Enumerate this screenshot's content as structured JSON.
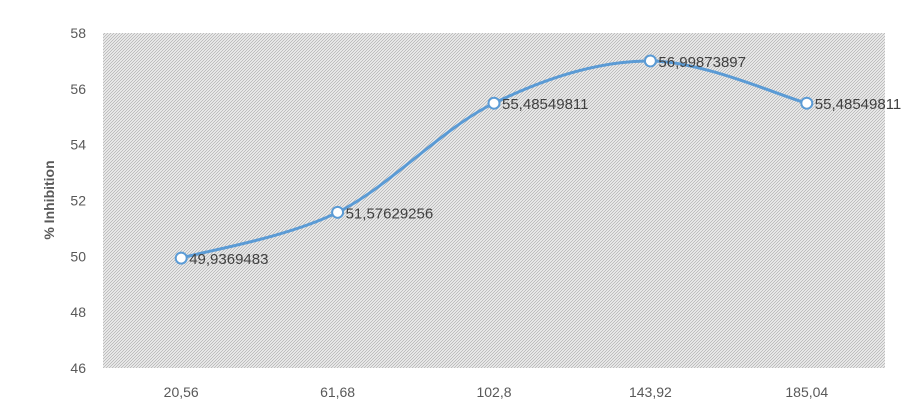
{
  "chart_data": {
    "type": "line",
    "title": "",
    "xlabel": "",
    "ylabel": "% Inhibition",
    "categories": [
      "20,56",
      "61,68",
      "102,8",
      "143,92",
      "185,04"
    ],
    "series": [
      {
        "values": [
          49.9369483,
          51.57629256,
          55.48549811,
          56.99873897,
          55.48549811
        ],
        "data_labels": [
          "49,9369483",
          "51,57629256",
          "55,48549811",
          "56,99873897",
          "55,48549811"
        ],
        "smooth": true,
        "color": "#5b9bd5"
      }
    ],
    "ylim": [
      46,
      58
    ],
    "yticks": [
      "46",
      "48",
      "50",
      "52",
      "54",
      "56",
      "58"
    ],
    "grid": false,
    "legend": "none",
    "plot_background": "hatched"
  }
}
